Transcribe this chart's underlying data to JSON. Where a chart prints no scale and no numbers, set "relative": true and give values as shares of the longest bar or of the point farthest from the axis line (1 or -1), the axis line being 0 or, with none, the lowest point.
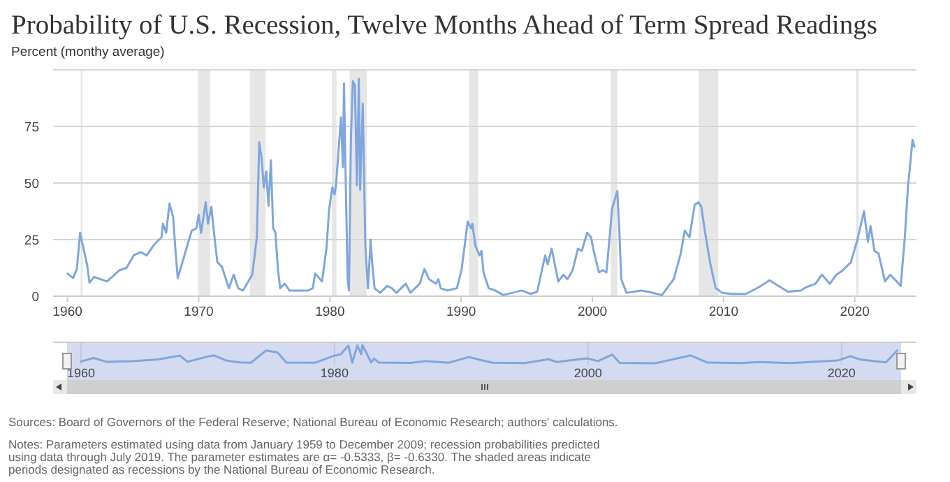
{
  "chart_data": [
    {
      "type": "line",
      "title": "Probability of U.S. Recession, Twelve Months Ahead of Term Spread Readings",
      "ylabel": "Percent (monthy average)",
      "xlim": [
        1958.9,
        2024.7
      ],
      "xticks": [
        1960,
        1970,
        1980,
        1990,
        2000,
        2010,
        2020
      ],
      "ylim": [
        0,
        100
      ],
      "yticks": [
        0,
        25,
        50,
        75,
        {
          "value": 100,
          "label": null
        }
      ],
      "grid": "y",
      "bands": [
        {
          "axis": "x",
          "from": 1961.0,
          "to": 1961.15,
          "color": "#e6e6e6"
        },
        {
          "axis": "x",
          "from": 1969.95,
          "to": 1970.87,
          "color": "#e6e6e6"
        },
        {
          "axis": "x",
          "from": 1973.9,
          "to": 1975.1,
          "color": "#e6e6e6"
        },
        {
          "axis": "x",
          "from": 1980.15,
          "to": 1980.5,
          "color": "#e6e6e6"
        },
        {
          "axis": "x",
          "from": 1981.5,
          "to": 1982.8,
          "color": "#e6e6e6"
        },
        {
          "axis": "x",
          "from": 1990.6,
          "to": 1991.3,
          "color": "#e6e6e6"
        },
        {
          "axis": "x",
          "from": 2001.4,
          "to": 2001.9,
          "color": "#e6e6e6"
        },
        {
          "axis": "x",
          "from": 2008.1,
          "to": 2009.6,
          "color": "#e6e6e6"
        },
        {
          "axis": "x",
          "from": 2020.1,
          "to": 2020.3,
          "color": "#e6e6e6"
        }
      ],
      "series": [
        {
          "color": "#7fa6de",
          "x": [
            1960.0,
            1960.43,
            1960.71,
            1960.96,
            1961.03,
            1961.49,
            1961.67,
            1962.02,
            1963.01,
            1963.97,
            1964.5,
            1965.04,
            1965.57,
            1966.03,
            1966.63,
            1967.16,
            1967.27,
            1967.52,
            1967.77,
            1968.05,
            1968.23,
            1968.4,
            1968.76,
            1969.11,
            1969.47,
            1969.82,
            1970.0,
            1970.18,
            1970.53,
            1970.71,
            1970.96,
            1971.24,
            1971.42,
            1971.77,
            1972.13,
            1972.3,
            1972.66,
            1973.01,
            1973.37,
            1974.08,
            1974.43,
            1974.61,
            1974.79,
            1974.96,
            1975.14,
            1975.32,
            1975.5,
            1975.67,
            1975.85,
            1976.03,
            1976.21,
            1976.56,
            1976.91,
            1978.33,
            1978.69,
            1978.87,
            1979.4,
            1979.75,
            1979.93,
            1980.18,
            1980.35,
            1980.46,
            1980.84,
            1980.99,
            1981.07,
            1981.17,
            1981.35,
            1981.45,
            1981.6,
            1981.75,
            1981.9,
            1982.06,
            1982.2,
            1982.3,
            1982.5,
            1982.7,
            1982.9,
            1983.1,
            1983.2,
            1983.4,
            1983.83,
            1984.36,
            1984.72,
            1985.07,
            1985.78,
            1986.13,
            1986.84,
            1987.2,
            1987.55,
            1988.09,
            1988.26,
            1988.44,
            1988.97,
            1989.68,
            1990.04,
            1990.5,
            1990.75,
            1990.85,
            1991.1,
            1991.4,
            1991.55,
            1991.7,
            1992.1,
            1992.6,
            1993.2,
            1994.6,
            1995.3,
            1995.8,
            1996.4,
            1996.6,
            1996.9,
            1997.4,
            1997.8,
            1998.1,
            1998.5,
            1998.9,
            1999.2,
            1999.6,
            1999.9,
            2000.1,
            2000.5,
            2000.8,
            2001.07,
            2001.3,
            2001.5,
            2001.9,
            2002.06,
            2002.2,
            2002.6,
            2003.7,
            2004.2,
            2005.3,
            2006.2,
            2006.7,
            2007.05,
            2007.4,
            2007.8,
            2008.1,
            2008.3,
            2008.65,
            2009.0,
            2009.4,
            2009.9,
            2010.6,
            2011.7,
            2012.7,
            2013.5,
            2014.2,
            2014.9,
            2015.9,
            2016.3,
            2017.0,
            2017.5,
            2018.1,
            2018.6,
            2019.1,
            2019.7,
            2020.2,
            2020.7,
            2021.0,
            2021.2,
            2021.5,
            2021.8,
            2022.3,
            2022.7,
            2023.2,
            2023.5,
            2023.8,
            2024.06,
            2024.2,
            2024.4,
            2024.55
          ],
          "values": [
            10,
            8,
            12,
            28,
            26,
            14,
            6,
            8.5,
            6.5,
            11.5,
            12.5,
            18,
            19.5,
            18,
            23,
            26,
            32,
            28,
            41,
            35,
            20,
            8,
            15,
            22,
            29,
            30,
            36,
            28,
            41.5,
            32,
            39.5,
            24,
            15,
            13,
            6.5,
            3.5,
            9.5,
            3.5,
            2.5,
            9.5,
            26,
            68,
            61,
            48,
            55,
            40,
            60,
            30,
            28,
            12,
            3.5,
            5.5,
            2.5,
            2.5,
            3.5,
            10,
            6.5,
            22,
            38,
            48,
            45,
            49,
            79,
            57,
            94,
            60,
            7.5,
            2.5,
            70,
            95,
            93,
            49,
            96,
            47,
            85,
            22,
            3.5,
            25,
            16,
            3.5,
            1.5,
            4.5,
            3.5,
            1.5,
            5.5,
            1.5,
            5.5,
            12,
            7.5,
            5.5,
            7.5,
            3.5,
            2.5,
            3.5,
            12,
            33,
            30,
            32,
            22,
            18,
            20,
            10.5,
            3.5,
            2.5,
            0.5,
            2.5,
            1,
            2,
            18,
            14,
            21,
            6.5,
            9.5,
            7.5,
            11.5,
            21,
            20,
            28,
            26,
            20,
            10.5,
            11.5,
            10.5,
            25,
            38.5,
            46.5,
            28,
            7.5,
            1.5,
            2.5,
            2,
            0.5,
            7.5,
            18,
            29,
            26,
            40.5,
            41.5,
            39.5,
            26,
            14,
            3.5,
            1.5,
            1,
            1,
            4,
            7,
            4.5,
            2,
            2.5,
            4,
            5.5,
            9.5,
            5.5,
            9.5,
            11.5,
            15,
            25,
            37.5,
            24,
            31,
            20,
            19,
            6.5,
            9.5,
            6.5,
            4.5,
            25,
            49,
            57,
            69,
            66
          ]
        }
      ],
      "annotations": [
        "Sources: Board of Governors of the Federal Reserve; National Bureau of Economic Research; authors' calculations.",
        "Notes: Parameters estimated using data from January 1959 to December 2009; recession probabilities predicted using data through July 2019. The parameter estimates are α= -0.5333, β= -0.6330. The shaded areas indicate periods designated as recessions by the National Bureau of Economic Research."
      ]
    },
    {
      "type": "line",
      "relative": true,
      "xlim": [
        1958.9,
        2024.7
      ],
      "xticks": [
        1960,
        1980,
        2000,
        2020
      ],
      "grid": "x",
      "series": [
        {
          "color": "#7fa6de",
          "x": [
            1960,
            1961,
            1962,
            1964,
            1966,
            1967.8,
            1968.4,
            1970,
            1970.5,
            1971.5,
            1972.5,
            1973.4,
            1974.6,
            1975.5,
            1976.2,
            1978.5,
            1979.9,
            1980.5,
            1980.9,
            1981.1,
            1981.4,
            1981.8,
            1982.1,
            1982.2,
            1982.9,
            1983.1,
            1983.5,
            1986,
            1987.2,
            1989,
            1990.6,
            1991.5,
            1992.5,
            1995,
            1996.9,
            1997.5,
            1999.9,
            2000.8,
            2001.9,
            2002.5,
            2005.3,
            2008.1,
            2009.4,
            2012,
            2013.5,
            2016,
            2019.7,
            2020.7,
            2021.5,
            2023.5,
            2024.4
          ],
          "values": [
            0.1,
            0.29,
            0.08,
            0.12,
            0.2,
            0.42,
            0.08,
            0.37,
            0.43,
            0.14,
            0.05,
            0.03,
            0.7,
            0.6,
            0.04,
            0.03,
            0.4,
            0.5,
            0.82,
            0.97,
            0.03,
            0.98,
            0.5,
            1,
            0.04,
            0.26,
            0.04,
            0.02,
            0.12,
            0.03,
            0.34,
            0.18,
            0.03,
            0.01,
            0.22,
            0.07,
            0.27,
            0.12,
            0.48,
            0.02,
            0,
            0.43,
            0.04,
            0.01,
            0.07,
            0.01,
            0.15,
            0.39,
            0.2,
            0.05,
            0.71
          ]
        }
      ]
    }
  ]
}
